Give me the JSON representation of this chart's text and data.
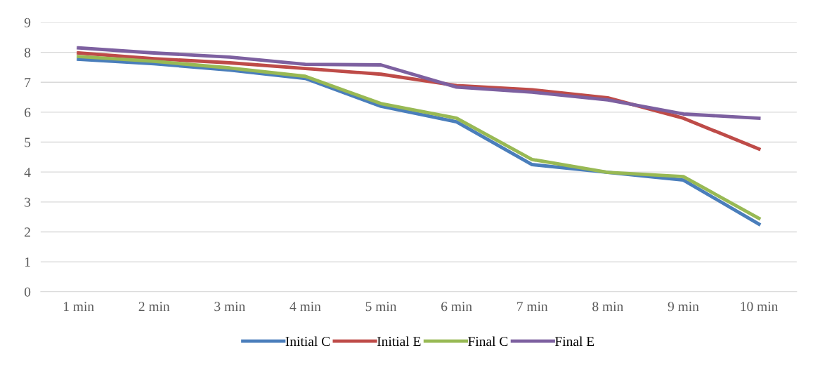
{
  "chart_data": {
    "type": "line",
    "categories": [
      "1 min",
      "2 min",
      "3 min",
      "4 min",
      "5 min",
      "6 min",
      "7 min",
      "8 min",
      "9 min",
      "10 min"
    ],
    "series": [
      {
        "name": "Initial C",
        "color": "#4a7ebb",
        "values": [
          7.77,
          7.62,
          7.41,
          7.13,
          6.2,
          5.68,
          4.25,
          3.99,
          3.73,
          2.26
        ]
      },
      {
        "name": "Initial E",
        "color": "#be4b48",
        "values": [
          7.98,
          7.79,
          7.65,
          7.46,
          7.27,
          6.89,
          6.75,
          6.48,
          5.8,
          4.77
        ]
      },
      {
        "name": "Final C",
        "color": "#98b954",
        "values": [
          7.86,
          7.7,
          7.48,
          7.2,
          6.29,
          5.8,
          4.42,
          3.99,
          3.85,
          2.45
        ]
      },
      {
        "name": "Final E",
        "color": "#7d60a0",
        "values": [
          8.15,
          7.98,
          7.84,
          7.6,
          7.58,
          6.84,
          6.67,
          6.41,
          5.94,
          5.8
        ]
      }
    ],
    "ylim": [
      0,
      9
    ],
    "yticks": [
      0,
      1,
      2,
      3,
      4,
      5,
      6,
      7,
      8,
      9
    ],
    "grid": "y",
    "legend": "bottom",
    "marker": "none",
    "line_style": "solid"
  }
}
